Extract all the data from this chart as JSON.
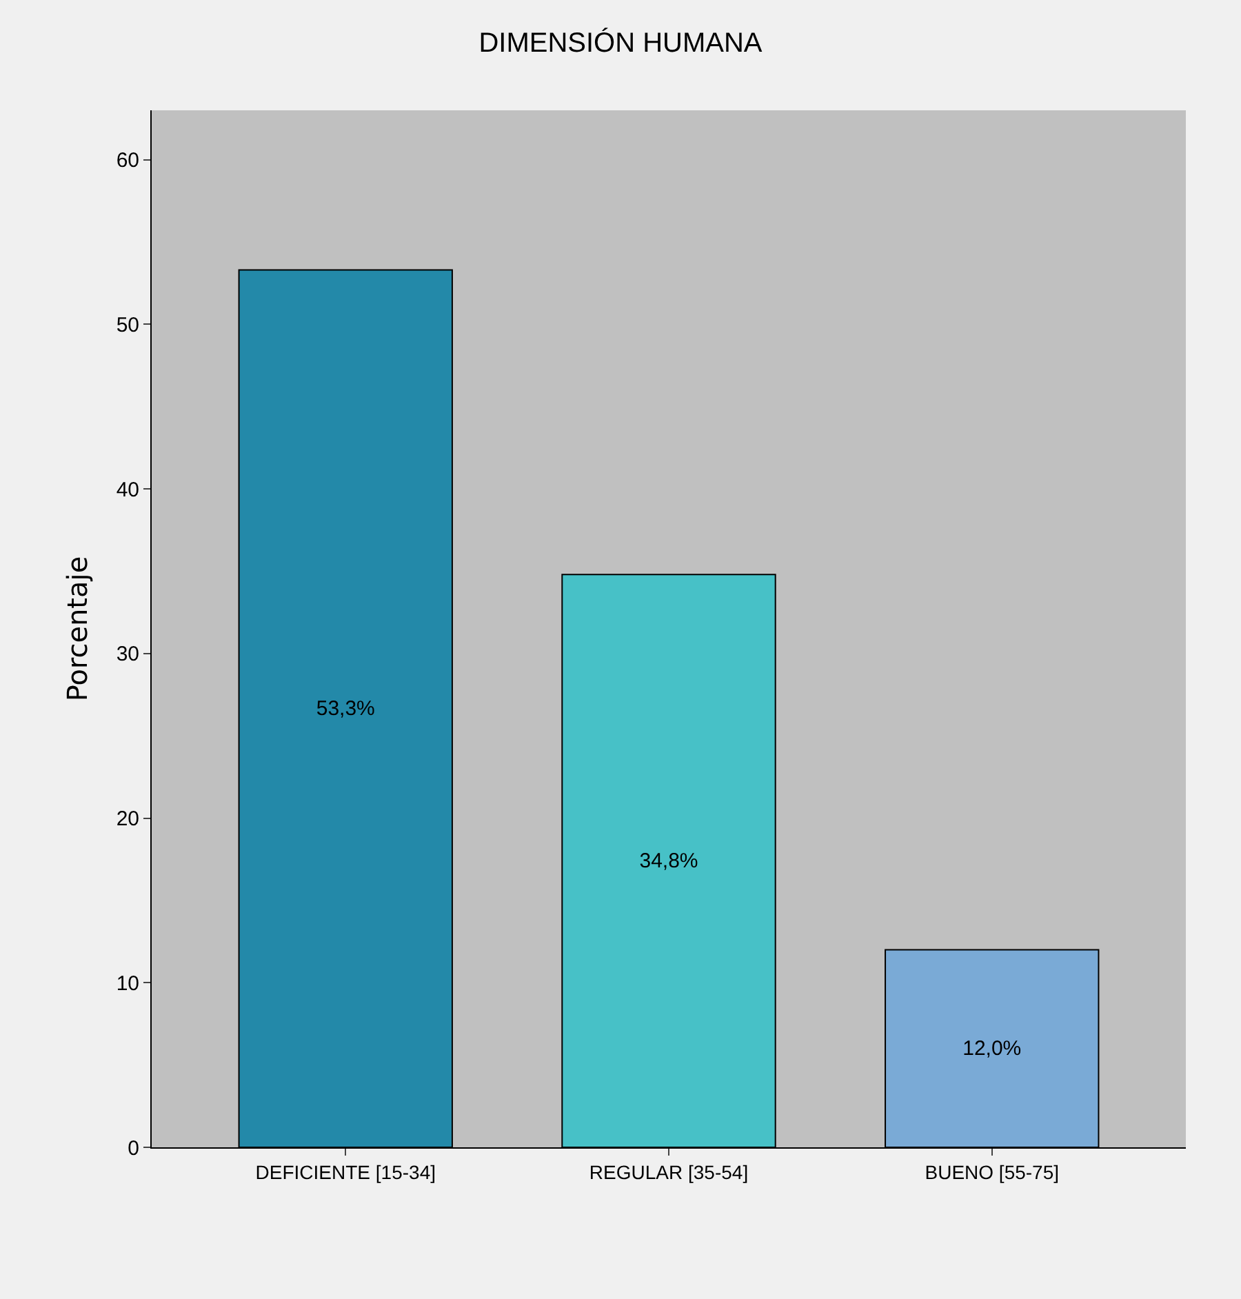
{
  "chart_data": {
    "type": "bar",
    "title": "DIMENSIÓN HUMANA",
    "ylabel": "Porcentaje",
    "categories": [
      "DEFICIENTE [15-34]",
      "REGULAR [35-54]",
      "BUENO [55-75]"
    ],
    "values": [
      53.3,
      34.8,
      12.0
    ],
    "colors": [
      "#2389a9",
      "#47c1c7",
      "#7aaad6"
    ],
    "value_labels": [
      "53,3%",
      "34,8%",
      "12,0%"
    ],
    "ylim": [
      0,
      63
    ],
    "yticks": [
      0,
      10,
      20,
      30,
      40,
      50,
      60
    ],
    "grid": false
  }
}
